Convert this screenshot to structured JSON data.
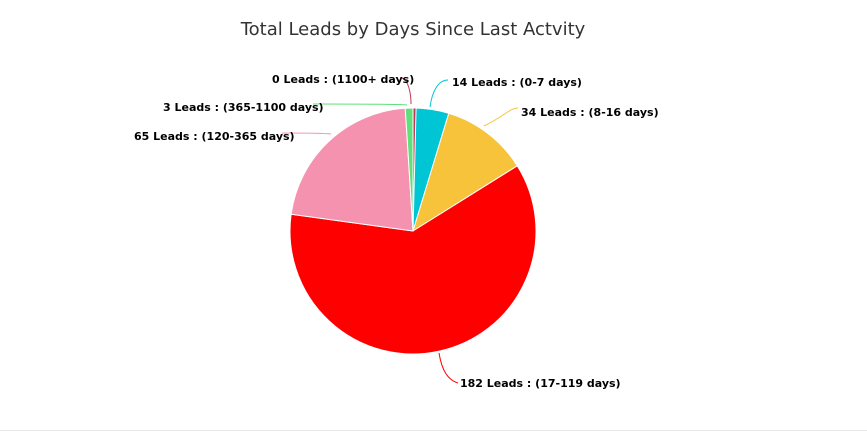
{
  "chart_data": {
    "type": "pie",
    "title": "Total Leads by Days Since Last Actvity",
    "slices": [
      {
        "label": "14 Leads : (0-7 days)",
        "category": "0-7 days",
        "value": 14,
        "color": "#00c5d4"
      },
      {
        "label": "34 Leads : (8-16 days)",
        "category": "8-16 days",
        "value": 34,
        "color": "#f6c33b"
      },
      {
        "label": "182 Leads : (17-119 days)",
        "category": "17-119 days",
        "value": 182,
        "color": "#ff0000"
      },
      {
        "label": "65 Leads : (120-365 days)",
        "category": "120-365 days",
        "value": 65,
        "color": "#f592b0"
      },
      {
        "label": "3 Leads : (365-1100 days)",
        "category": "365-1100 days",
        "value": 3,
        "color": "#5fe07a"
      },
      {
        "label": "0 Leads : (1100+ days)",
        "category": "1100+ days",
        "value": 0,
        "color": "#c0395a"
      }
    ]
  }
}
